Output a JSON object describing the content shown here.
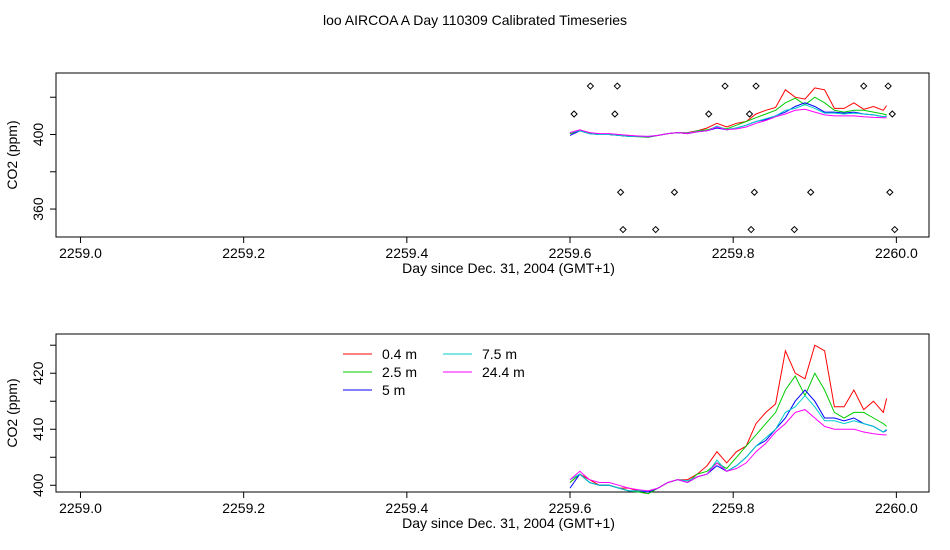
{
  "title": "loo AIRCOA A  Day 110309  Calibrated Timeseries",
  "chart_data": [
    {
      "type": "scatter",
      "xlabel": "Day since Dec. 31, 2004 (GMT+1)",
      "ylabel": "CO2 (ppm)",
      "xlim": [
        2258.97,
        2260.04
      ],
      "ylim": [
        345,
        433
      ],
      "xticks": [
        2259.0,
        2259.2,
        2259.4,
        2259.6,
        2259.8,
        2260.0
      ],
      "xtick_labels": [
        "2259.0",
        "2259.2",
        "2259.4",
        "2259.6",
        "2259.8",
        "2260.0"
      ],
      "yticks": [
        360,
        400
      ],
      "ytick_labels": [
        "360",
        "400"
      ],
      "yminor_ticks": [
        380,
        420
      ],
      "series": [
        {
          "color": "#ff0000",
          "x": [
            2259.6,
            2259.612,
            2259.624,
            2259.636,
            2259.648,
            2259.66,
            2259.672,
            2259.684,
            2259.696,
            2259.708,
            2259.72,
            2259.732,
            2259.744,
            2259.756,
            2259.768,
            2259.78,
            2259.792,
            2259.804,
            2259.816,
            2259.828,
            2259.84,
            2259.852,
            2259.864,
            2259.876,
            2259.888,
            2259.9,
            2259.912,
            2259.924,
            2259.936,
            2259.948,
            2259.96,
            2259.972,
            2259.984,
            2259.988
          ],
          "y": [
            400.5,
            402,
            401,
            400,
            400,
            399.5,
            399.5,
            399,
            398.8,
            399.5,
            400.5,
            401,
            401,
            402,
            403.5,
            406,
            404,
            406,
            407,
            411,
            413,
            414.5,
            424,
            420,
            419,
            425,
            424,
            414,
            414,
            417,
            413.5,
            415,
            413,
            415.5
          ]
        },
        {
          "color": "#00cc00",
          "x": [
            2259.6,
            2259.612,
            2259.624,
            2259.636,
            2259.648,
            2259.66,
            2259.672,
            2259.684,
            2259.696,
            2259.708,
            2259.72,
            2259.732,
            2259.744,
            2259.756,
            2259.768,
            2259.78,
            2259.792,
            2259.804,
            2259.816,
            2259.828,
            2259.84,
            2259.852,
            2259.864,
            2259.876,
            2259.888,
            2259.9,
            2259.912,
            2259.924,
            2259.936,
            2259.948,
            2259.96,
            2259.972,
            2259.984,
            2259.988
          ],
          "y": [
            400.5,
            402,
            400.5,
            400,
            400,
            399.5,
            399,
            398.8,
            398.5,
            399.5,
            400.5,
            401,
            400.5,
            402,
            402.5,
            404,
            403,
            405,
            407,
            409,
            411,
            413,
            417,
            419.5,
            416,
            420,
            417,
            413,
            412,
            413,
            413,
            412,
            411,
            410.5
          ]
        },
        {
          "color": "#0000ff",
          "x": [
            2259.6,
            2259.612,
            2259.624,
            2259.636,
            2259.648,
            2259.66,
            2259.672,
            2259.684,
            2259.696,
            2259.708,
            2259.72,
            2259.732,
            2259.744,
            2259.756,
            2259.768,
            2259.78,
            2259.792,
            2259.804,
            2259.816,
            2259.828,
            2259.84,
            2259.852,
            2259.864,
            2259.876,
            2259.888,
            2259.9,
            2259.912,
            2259.924,
            2259.936,
            2259.948,
            2259.96,
            2259.972,
            2259.984,
            2259.988
          ],
          "y": [
            399.5,
            402,
            400.5,
            400,
            400,
            399.5,
            399,
            399,
            398.8,
            399.5,
            400.5,
            401,
            400.5,
            401.5,
            402,
            403.5,
            402.5,
            403.5,
            405,
            407,
            408,
            410,
            412,
            415,
            417,
            415,
            412,
            412,
            411.5,
            412,
            411,
            410.5,
            409.5,
            409.8
          ]
        },
        {
          "color": "#00cccc",
          "x": [
            2259.6,
            2259.612,
            2259.624,
            2259.636,
            2259.648,
            2259.66,
            2259.672,
            2259.684,
            2259.696,
            2259.708,
            2259.72,
            2259.732,
            2259.744,
            2259.756,
            2259.768,
            2259.78,
            2259.792,
            2259.804,
            2259.816,
            2259.828,
            2259.84,
            2259.852,
            2259.864,
            2259.876,
            2259.888,
            2259.9,
            2259.912,
            2259.924,
            2259.936,
            2259.948,
            2259.96,
            2259.972,
            2259.984,
            2259.988
          ],
          "y": [
            401,
            402,
            400.5,
            400,
            400,
            399.5,
            399,
            399,
            399,
            399.5,
            400.5,
            401,
            400.8,
            401.5,
            402,
            404.5,
            402.5,
            403.5,
            405,
            407,
            408.5,
            410,
            413,
            414,
            416,
            414,
            411.5,
            411.5,
            411,
            411.5,
            411,
            410.5,
            409.5,
            410
          ]
        },
        {
          "color": "#ff00ff",
          "x": [
            2259.6,
            2259.612,
            2259.624,
            2259.636,
            2259.648,
            2259.66,
            2259.672,
            2259.684,
            2259.696,
            2259.708,
            2259.72,
            2259.732,
            2259.744,
            2259.756,
            2259.768,
            2259.78,
            2259.792,
            2259.804,
            2259.816,
            2259.828,
            2259.84,
            2259.852,
            2259.864,
            2259.876,
            2259.888,
            2259.9,
            2259.912,
            2259.924,
            2259.936,
            2259.948,
            2259.96,
            2259.972,
            2259.984,
            2259.988
          ],
          "y": [
            401,
            402.5,
            401,
            400.5,
            400.5,
            400,
            399.5,
            399.2,
            399,
            399.5,
            400.5,
            401,
            400.5,
            401.5,
            402,
            404,
            402.5,
            403,
            404,
            406,
            407.5,
            409.5,
            411,
            413,
            413.5,
            412,
            410.5,
            410,
            410,
            410,
            409.5,
            409.2,
            409,
            409
          ]
        }
      ],
      "markers": {
        "x": [
          2259.605,
          2259.655,
          2259.77,
          2259.82,
          2259.995,
          2259.625,
          2259.658,
          2259.79,
          2259.828,
          2259.96,
          2259.99,
          2259.662,
          2259.728,
          2259.826,
          2259.895,
          2259.992,
          2259.665,
          2259.705,
          2259.822,
          2259.875,
          2259.998
        ],
        "y": [
          411,
          411,
          411,
          411,
          411,
          426,
          426,
          426,
          426,
          426,
          426,
          369,
          369,
          369,
          369,
          369,
          349,
          349,
          349,
          349,
          349
        ]
      },
      "grid": false,
      "legend": "none"
    },
    {
      "type": "line",
      "xlabel": "Day since Dec. 31, 2004 (GMT+1)",
      "ylabel": "CO2 (ppm)",
      "xlim": [
        2258.97,
        2260.04
      ],
      "ylim": [
        398.8,
        427
      ],
      "xticks": [
        2259.0,
        2259.2,
        2259.4,
        2259.6,
        2259.8,
        2260.0
      ],
      "xtick_labels": [
        "2259.0",
        "2259.2",
        "2259.4",
        "2259.6",
        "2259.8",
        "2260.0"
      ],
      "yticks": [
        400,
        410,
        420
      ],
      "ytick_labels": [
        "400",
        "410",
        "420"
      ],
      "yminor_ticks": [
        405,
        415,
        425
      ],
      "series": [
        {
          "name": "0.4 m",
          "color": "#ff0000",
          "x": [
            2259.6,
            2259.612,
            2259.624,
            2259.636,
            2259.648,
            2259.66,
            2259.672,
            2259.684,
            2259.696,
            2259.708,
            2259.72,
            2259.732,
            2259.744,
            2259.756,
            2259.768,
            2259.78,
            2259.792,
            2259.804,
            2259.816,
            2259.828,
            2259.84,
            2259.852,
            2259.864,
            2259.876,
            2259.888,
            2259.9,
            2259.912,
            2259.924,
            2259.936,
            2259.948,
            2259.96,
            2259.972,
            2259.984,
            2259.988
          ],
          "y": [
            400.5,
            402,
            401,
            400,
            400,
            399.5,
            399.5,
            399,
            398.8,
            399.5,
            400.5,
            401,
            401,
            402,
            403.5,
            406,
            404,
            406,
            407,
            411,
            413,
            414.5,
            424,
            420,
            419,
            425,
            424,
            414,
            414,
            417,
            413.5,
            415,
            413,
            415.5
          ]
        },
        {
          "name": "2.5 m",
          "color": "#00cc00",
          "x": [
            2259.6,
            2259.612,
            2259.624,
            2259.636,
            2259.648,
            2259.66,
            2259.672,
            2259.684,
            2259.696,
            2259.708,
            2259.72,
            2259.732,
            2259.744,
            2259.756,
            2259.768,
            2259.78,
            2259.792,
            2259.804,
            2259.816,
            2259.828,
            2259.84,
            2259.852,
            2259.864,
            2259.876,
            2259.888,
            2259.9,
            2259.912,
            2259.924,
            2259.936,
            2259.948,
            2259.96,
            2259.972,
            2259.984,
            2259.988
          ],
          "y": [
            400.5,
            402,
            400.5,
            400,
            400,
            399.5,
            399,
            398.8,
            398.5,
            399.5,
            400.5,
            401,
            400.5,
            402,
            402.5,
            404,
            403,
            405,
            407,
            409,
            411,
            413,
            417,
            419.5,
            416,
            420,
            417,
            413,
            412,
            413,
            413,
            412,
            411,
            410.5
          ]
        },
        {
          "name": "5 m",
          "color": "#0000ff",
          "x": [
            2259.6,
            2259.612,
            2259.624,
            2259.636,
            2259.648,
            2259.66,
            2259.672,
            2259.684,
            2259.696,
            2259.708,
            2259.72,
            2259.732,
            2259.744,
            2259.756,
            2259.768,
            2259.78,
            2259.792,
            2259.804,
            2259.816,
            2259.828,
            2259.84,
            2259.852,
            2259.864,
            2259.876,
            2259.888,
            2259.9,
            2259.912,
            2259.924,
            2259.936,
            2259.948,
            2259.96,
            2259.972,
            2259.984,
            2259.988
          ],
          "y": [
            399.5,
            402,
            400.5,
            400,
            400,
            399.5,
            399,
            399,
            398.8,
            399.5,
            400.5,
            401,
            400.5,
            401.5,
            402,
            403.5,
            402.5,
            403.5,
            405,
            407,
            408,
            410,
            412,
            415,
            417,
            415,
            412,
            412,
            411.5,
            412,
            411,
            410.5,
            409.5,
            409.8
          ]
        },
        {
          "name": "7.5 m",
          "color": "#00cccc",
          "x": [
            2259.6,
            2259.612,
            2259.624,
            2259.636,
            2259.648,
            2259.66,
            2259.672,
            2259.684,
            2259.696,
            2259.708,
            2259.72,
            2259.732,
            2259.744,
            2259.756,
            2259.768,
            2259.78,
            2259.792,
            2259.804,
            2259.816,
            2259.828,
            2259.84,
            2259.852,
            2259.864,
            2259.876,
            2259.888,
            2259.9,
            2259.912,
            2259.924,
            2259.936,
            2259.948,
            2259.96,
            2259.972,
            2259.984,
            2259.988
          ],
          "y": [
            401,
            402,
            400.5,
            400,
            400,
            399.5,
            399,
            399,
            399,
            399.5,
            400.5,
            401,
            400.8,
            401.5,
            402,
            404.5,
            402.5,
            403.5,
            405,
            407,
            408.5,
            410,
            413,
            414,
            416,
            414,
            411.5,
            411.5,
            411,
            411.5,
            411,
            410.5,
            409.5,
            410
          ]
        },
        {
          "name": "24.4 m",
          "color": "#ff00ff",
          "x": [
            2259.6,
            2259.612,
            2259.624,
            2259.636,
            2259.648,
            2259.66,
            2259.672,
            2259.684,
            2259.696,
            2259.708,
            2259.72,
            2259.732,
            2259.744,
            2259.756,
            2259.768,
            2259.78,
            2259.792,
            2259.804,
            2259.816,
            2259.828,
            2259.84,
            2259.852,
            2259.864,
            2259.876,
            2259.888,
            2259.9,
            2259.912,
            2259.924,
            2259.936,
            2259.948,
            2259.96,
            2259.972,
            2259.984,
            2259.988
          ],
          "y": [
            401,
            402.5,
            401,
            400.5,
            400.5,
            400,
            399.5,
            399.2,
            399,
            399.5,
            400.5,
            401,
            400.5,
            401.5,
            402,
            404,
            402.5,
            403,
            404,
            406,
            407.5,
            409.5,
            411,
            413,
            413.5,
            412,
            410.5,
            410,
            410,
            410,
            409.5,
            409.2,
            409,
            409
          ]
        }
      ],
      "grid": false,
      "legend": "top-center"
    }
  ]
}
